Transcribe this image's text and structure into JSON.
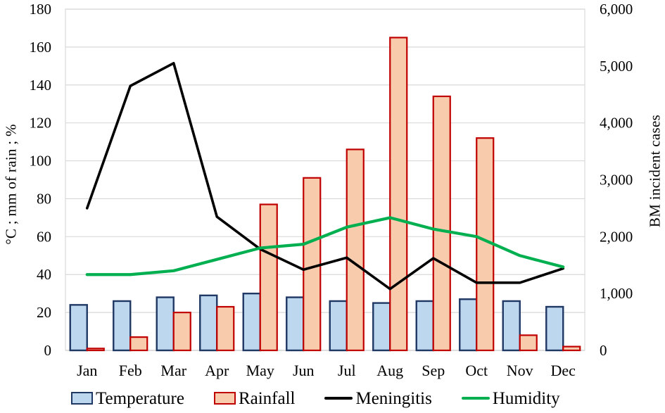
{
  "chart_data": {
    "type": "combo",
    "categories": [
      "Jan",
      "Feb",
      "Mar",
      "Apr",
      "May",
      "Jun",
      "Jul",
      "Aug",
      "Sep",
      "Oct",
      "Nov",
      "Dec"
    ],
    "series": [
      {
        "name": "Temperature",
        "type": "bar",
        "axis": "left",
        "values": [
          24,
          26,
          28,
          29,
          30,
          28,
          26,
          25,
          26,
          27,
          26,
          23
        ],
        "fill": "#BDD7EE",
        "stroke": "#1F3864"
      },
      {
        "name": "Rainfall",
        "type": "bar",
        "axis": "left",
        "values": [
          1,
          7,
          20,
          23,
          77,
          91,
          106,
          165,
          134,
          112,
          8,
          2
        ],
        "fill": "#F8CBAD",
        "stroke": "#C00000"
      },
      {
        "name": "Meningitis",
        "type": "line",
        "axis": "right",
        "values": [
          2500,
          4650,
          5050,
          2350,
          1780,
          1420,
          1630,
          1080,
          1620,
          1190,
          1190,
          1440
        ],
        "stroke": "#000000"
      },
      {
        "name": "Humidity",
        "type": "line",
        "axis": "left",
        "values": [
          40,
          40,
          42,
          48,
          54,
          56,
          65,
          70,
          64,
          60,
          50,
          44
        ],
        "stroke": "#00B050"
      }
    ],
    "left_axis": {
      "title": "°C ; mm of rain ; %",
      "min": 0,
      "max": 180,
      "step": 20,
      "tick_labels": [
        "0",
        "20",
        "40",
        "60",
        "80",
        "100",
        "120",
        "140",
        "160",
        "180"
      ]
    },
    "right_axis": {
      "title": "BM incident cases",
      "min": 0,
      "max": 6000,
      "step": 1000,
      "tick_labels": [
        "0",
        "1,000",
        "2,000",
        "3,000",
        "4,000",
        "5,000",
        "6,000"
      ]
    },
    "grid": true,
    "legend_position": "bottom"
  },
  "colors": {
    "background": "#FFFFFF",
    "grid": "#D9D9D9",
    "axis_line": "#C9C9C9",
    "text": "#000000"
  }
}
